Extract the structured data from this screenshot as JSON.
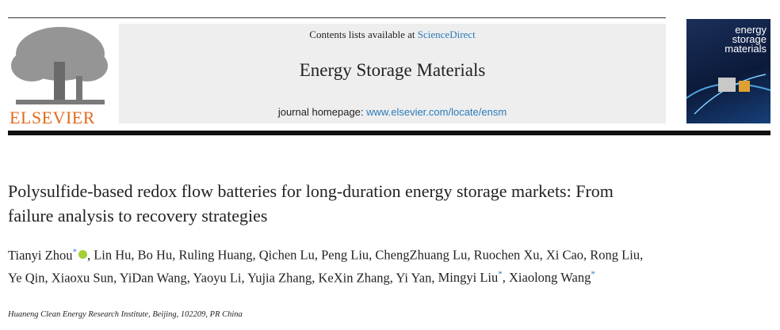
{
  "header": {
    "contents_prefix": "Contents lists available at",
    "contents_link": "ScienceDirect",
    "journal": "Energy Storage Materials",
    "homepage_prefix": "journal homepage:",
    "homepage_link": "www.elsevier.com/locate/ensm",
    "publisher": "ELSEVIER",
    "cover_title": [
      "energy",
      "storage",
      "materials"
    ]
  },
  "article": {
    "title": "Polysulfide-based redox flow batteries for long-duration energy storage markets: From failure analysis to recovery strategies",
    "separator": ",",
    "authors": [
      {
        "name": "Tianyi Zhou",
        "mark": "*"
      },
      {
        "name": "Lin Hu"
      },
      {
        "name": "Bo Hu"
      },
      {
        "name": "Ruling Huang"
      },
      {
        "name": "Qichen Lu"
      },
      {
        "name": "Peng Liu"
      },
      {
        "name": "ChengZhuang Lu"
      },
      {
        "name": "Ruochen Xu"
      },
      {
        "name": "Xi Cao"
      },
      {
        "name": "Rong Liu"
      },
      {
        "name": "Ye Qin"
      },
      {
        "name": "Xiaoxu Sun"
      },
      {
        "name": "YiDan Wang"
      },
      {
        "name": "Yaoyu Li"
      },
      {
        "name": "Yujia Zhang"
      },
      {
        "name": "KeXin Zhang"
      },
      {
        "name": "Yi Yan"
      },
      {
        "name": "Mingyi Liu",
        "mark": "*"
      },
      {
        "name": "Xiaolong Wang",
        "mark": "*"
      }
    ],
    "affiliation": "Huaneng Clean Energy Research Institute, Beijing, 102209, PR China"
  }
}
